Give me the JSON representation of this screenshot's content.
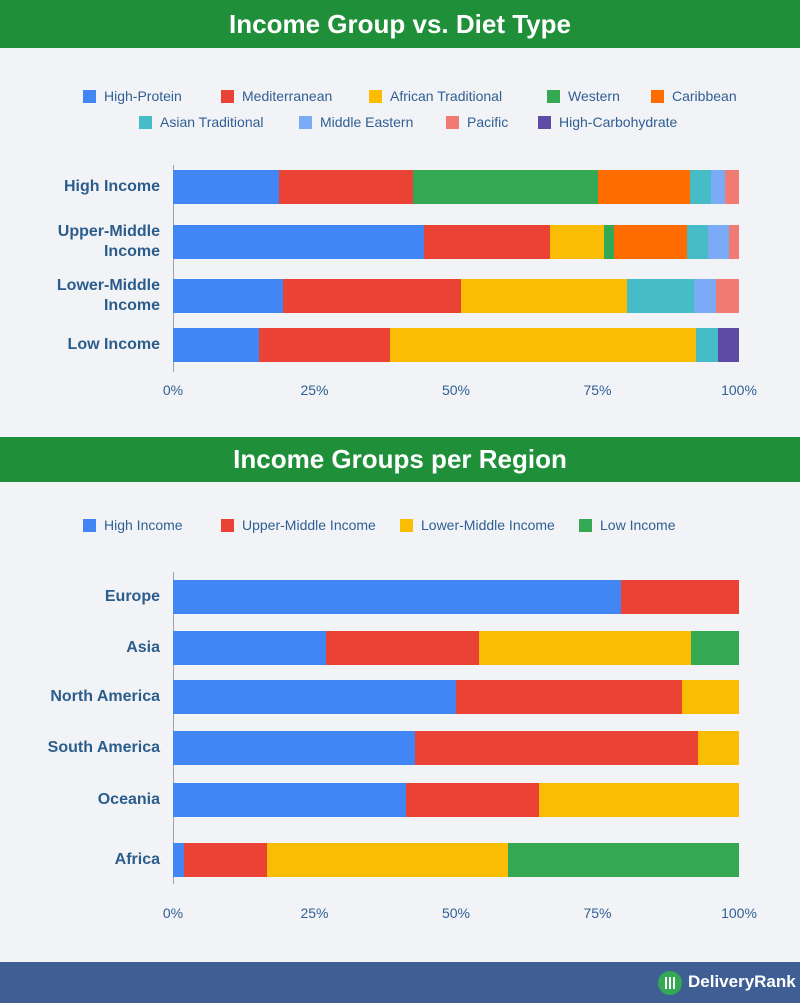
{
  "chart_data": [
    {
      "type": "stacked-bar-horizontal",
      "title": "Income Group vs. Diet Type",
      "categories": [
        "High Income",
        "Upper-Middle Income",
        "Lower-Middle Income",
        "Low Income"
      ],
      "series": [
        {
          "name": "High-Protein",
          "color": "#4285f4",
          "values": [
            18.7,
            44.3,
            19.4,
            15.2
          ]
        },
        {
          "name": "Mediterranean",
          "color": "#ea4335",
          "values": [
            23.7,
            22.3,
            31.4,
            23.1
          ]
        },
        {
          "name": "African Traditional",
          "color": "#fbbc04",
          "values": [
            0,
            9.5,
            29.5,
            54.1
          ]
        },
        {
          "name": "Western",
          "color": "#34a853",
          "values": [
            32.7,
            1.8,
            0,
            0
          ]
        },
        {
          "name": "Caribbean",
          "color": "#ff6d01",
          "values": [
            16.3,
            12.9,
            0,
            0
          ]
        },
        {
          "name": "Asian Traditional",
          "color": "#46bdc6",
          "values": [
            3.7,
            3.7,
            11.8,
            3.9
          ]
        },
        {
          "name": "Middle Eastern",
          "color": "#7baaf7",
          "values": [
            2.5,
            3.7,
            3.9,
            0
          ]
        },
        {
          "name": "Pacific",
          "color": "#f07b72",
          "values": [
            2.4,
            1.8,
            4.0,
            0
          ]
        },
        {
          "name": "High-Carbohydrate",
          "color": "#5e4ba6",
          "values": [
            0,
            0,
            0,
            3.7
          ]
        }
      ],
      "xlim": [
        0,
        100
      ],
      "xticks": [
        {
          "value": 0,
          "label": "0%"
        },
        {
          "value": 25,
          "label": "25%"
        },
        {
          "value": 50,
          "label": "50%"
        },
        {
          "value": 75,
          "label": "75%"
        },
        {
          "value": 100,
          "label": "100%"
        }
      ]
    },
    {
      "type": "stacked-bar-horizontal",
      "title": "Income Groups per Region",
      "categories": [
        "Europe",
        "Asia",
        "North America",
        "South America",
        "Oceania",
        "Africa"
      ],
      "series": [
        {
          "name": "High Income",
          "color": "#4285f4",
          "values": [
            79.2,
            27.0,
            50.0,
            42.8,
            41.2,
            1.9
          ]
        },
        {
          "name": "Upper-Middle Income",
          "color": "#ea4335",
          "values": [
            20.8,
            27.0,
            39.9,
            50.0,
            23.5,
            14.7
          ]
        },
        {
          "name": "Lower-Middle Income",
          "color": "#fbbc04",
          "values": [
            0,
            37.6,
            10.1,
            7.2,
            35.3,
            42.6
          ]
        },
        {
          "name": "Low Income",
          "color": "#34a853",
          "values": [
            0,
            8.4,
            0,
            0,
            0,
            40.8
          ]
        }
      ],
      "xlim": [
        0,
        100
      ],
      "xticks": [
        {
          "value": 0,
          "label": "0%"
        },
        {
          "value": 25,
          "label": "25%"
        },
        {
          "value": 50,
          "label": "50%"
        },
        {
          "value": 75,
          "label": "75%"
        },
        {
          "value": 100,
          "label": "100%"
        }
      ]
    }
  ],
  "footer": {
    "brand": "DeliveryRank"
  }
}
